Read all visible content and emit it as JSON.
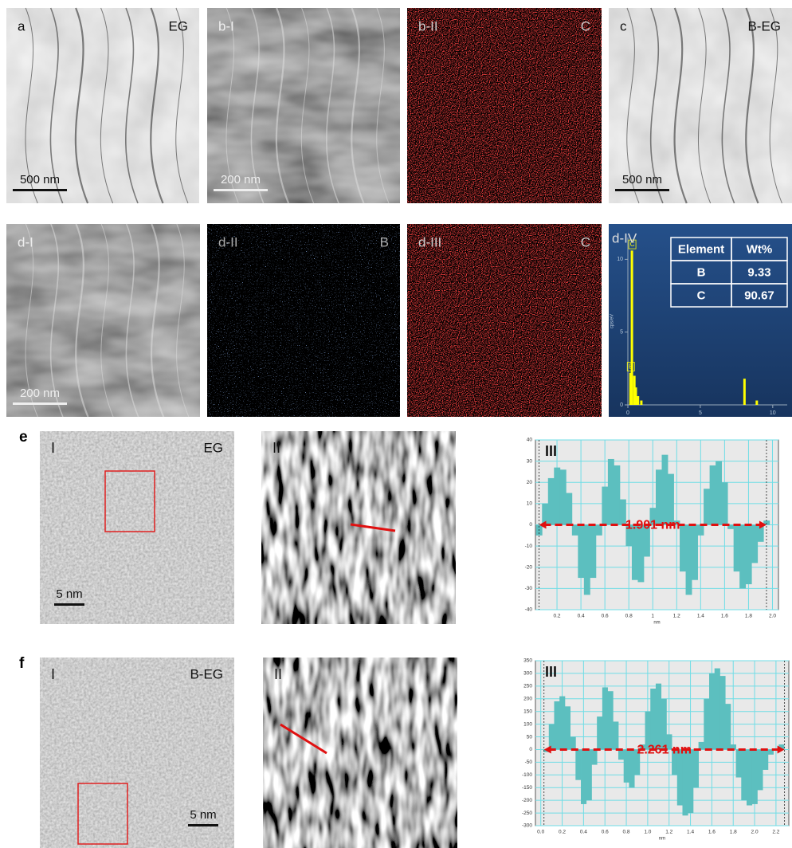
{
  "panels": [
    {
      "label": "a",
      "tag": "EG",
      "scale_bar": "500 nm"
    },
    {
      "label": "b-I",
      "scale_bar": "200 nm"
    },
    {
      "label": "b-II",
      "tag": "C"
    },
    {
      "label": "c",
      "tag": "B-EG",
      "scale_bar": "500 nm"
    },
    {
      "label": "d-I",
      "scale_bar": "200 nm"
    },
    {
      "label": "d-II",
      "tag": "B"
    },
    {
      "label": "d-III",
      "tag": "C"
    }
  ],
  "rows": [
    {
      "label": "e",
      "panels": [
        {
          "label": "I",
          "tag": "EG",
          "scale_bar": "5 nm"
        },
        {
          "label": "II"
        }
      ]
    },
    {
      "label": "f",
      "panels": [
        {
          "label": "I",
          "tag": "B-EG",
          "scale_bar": "5 nm"
        },
        {
          "label": "II"
        }
      ]
    }
  ],
  "chart_data": [
    {
      "type": "spectrum",
      "panel_label": "d-IV",
      "y_label": "cps/eV",
      "x": [
        0.18,
        0.28,
        0.45,
        0.55,
        0.7,
        0.93,
        8.05,
        8.9
      ],
      "values": [
        2.2,
        10.6,
        2.0,
        1.2,
        0.6,
        0.3,
        1.8,
        0.3
      ],
      "color": "#ffff00",
      "xlim": [
        0,
        11
      ],
      "xticks": [
        0,
        5,
        10
      ],
      "ylim": [
        0,
        11.5
      ],
      "yticks": [
        0,
        5,
        10
      ],
      "peak_labels": [
        {
          "text": "C",
          "x": 0.28,
          "y": 11
        },
        {
          "text": "B",
          "x": 0.18,
          "y": 2.6
        }
      ],
      "table": {
        "header": [
          "Element",
          "Wt%"
        ],
        "rows": [
          [
            "B",
            "9.33"
          ],
          [
            "C",
            "90.67"
          ]
        ]
      }
    },
    {
      "type": "profile",
      "panel_label": "III",
      "x_label": "nm",
      "color": "#5cbfbf",
      "grid": true,
      "annotation": "1.901 nm",
      "measure_range": [
        0.05,
        1.95
      ],
      "x": [
        0.05,
        0.1,
        0.15,
        0.2,
        0.25,
        0.3,
        0.35,
        0.4,
        0.45,
        0.5,
        0.55,
        0.6,
        0.65,
        0.7,
        0.75,
        0.8,
        0.85,
        0.9,
        0.95,
        1.0,
        1.05,
        1.1,
        1.15,
        1.2,
        1.25,
        1.3,
        1.35,
        1.4,
        1.45,
        1.5,
        1.55,
        1.6,
        1.65,
        1.7,
        1.75,
        1.8,
        1.85,
        1.9,
        1.95
      ],
      "values": [
        -5,
        10,
        22,
        27,
        26,
        15,
        -5,
        -25,
        -33,
        -25,
        -5,
        18,
        31,
        28,
        12,
        -10,
        -26,
        -27,
        -15,
        8,
        26,
        33,
        24,
        2,
        -22,
        -33,
        -26,
        -5,
        17,
        28,
        30,
        20,
        -2,
        -22,
        -30,
        -28,
        -18,
        -8,
        2
      ],
      "xlim": [
        0.02,
        2.05
      ],
      "xticks": [
        0.2,
        0.4,
        0.6,
        0.8,
        1.0,
        1.2,
        1.4,
        1.6,
        1.8,
        {
          "value": 2,
          "label": "2.0"
        }
      ],
      "ylim": [
        -40,
        40
      ],
      "yticks": [
        -40,
        -30,
        -20,
        -10,
        0,
        10,
        20,
        30,
        40
      ]
    },
    {
      "type": "profile",
      "panel_label": "III",
      "x_label": "nm",
      "color": "#5cbfbf",
      "grid": true,
      "annotation": "2.261 nm",
      "measure_range": [
        0.03,
        2.28
      ],
      "x": [
        0.05,
        0.1,
        0.15,
        0.2,
        0.25,
        0.3,
        0.35,
        0.4,
        0.45,
        0.5,
        0.55,
        0.6,
        0.65,
        0.7,
        0.75,
        0.8,
        0.85,
        0.9,
        0.95,
        1.0,
        1.05,
        1.1,
        1.15,
        1.2,
        1.25,
        1.3,
        1.35,
        1.4,
        1.45,
        1.5,
        1.55,
        1.6,
        1.65,
        1.7,
        1.75,
        1.8,
        1.85,
        1.9,
        1.95,
        2.0,
        2.05,
        2.1,
        2.15,
        2.2,
        2.25
      ],
      "values": [
        -10,
        100,
        190,
        210,
        170,
        50,
        -120,
        -215,
        -200,
        -60,
        130,
        245,
        230,
        110,
        -40,
        -130,
        -150,
        -100,
        20,
        150,
        240,
        260,
        200,
        60,
        -100,
        -220,
        -260,
        -250,
        -150,
        30,
        200,
        300,
        320,
        290,
        180,
        20,
        -110,
        -200,
        -220,
        -215,
        -160,
        -80,
        -20,
        0,
        20
      ],
      "xlim": [
        -0.05,
        2.32
      ],
      "xticks": [
        {
          "value": 0,
          "label": "0.0"
        },
        0.2,
        0.4,
        0.6,
        0.8,
        {
          "value": 1,
          "label": "1.0"
        },
        1.2,
        1.4,
        1.6,
        1.8,
        {
          "value": 2,
          "label": "2.0"
        },
        2.2
      ],
      "ylim": [
        -300,
        350
      ],
      "yticks": [
        -300,
        -250,
        -200,
        -150,
        -100,
        -50,
        0,
        50,
        100,
        150,
        200,
        250,
        300,
        350
      ]
    }
  ]
}
